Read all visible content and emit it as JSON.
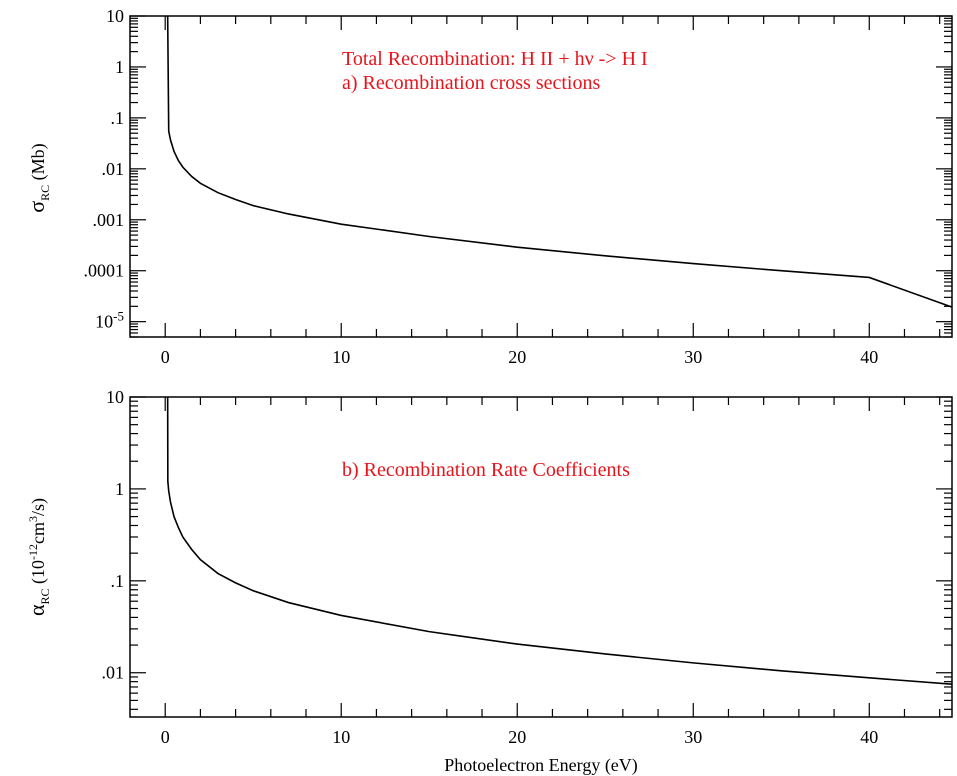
{
  "colors": {
    "annotation": "#e8141c",
    "curve": "#000000",
    "axes": "#000000",
    "background": "#ffffff"
  },
  "figure": {
    "xlabel": "Photoelectron Energy (eV)"
  },
  "chart_data": [
    {
      "type": "line",
      "panel": "a",
      "annotation_lines": [
        "Total Recombination: H II + hν -> H I",
        "a) Recombination cross sections"
      ],
      "ylabel": {
        "symbol": "σ",
        "subscript": "RC",
        "rest": " (Mb)"
      },
      "yscale": "log",
      "xlim": [
        -2,
        44.7
      ],
      "ylim": [
        5e-06,
        10
      ],
      "x_ticks": [
        0,
        10,
        20,
        30,
        40
      ],
      "x_tick_labels": [
        "0",
        "10",
        "20",
        "30",
        "40"
      ],
      "y_ticks": [
        10,
        1,
        0.1,
        0.01,
        0.001,
        0.0001
      ],
      "y_tick_labels": [
        "10",
        "1",
        ".1",
        ".01",
        ".001",
        ".0001"
      ],
      "y_tick_extra": {
        "value": 1e-05,
        "base": "10",
        "exponent": "-5"
      },
      "grid": false,
      "legend": "none",
      "series": [
        {
          "x": [
            0.14,
            0.2,
            0.3,
            0.5,
            0.75,
            1,
            1.5,
            2,
            3,
            4,
            5,
            7,
            10,
            15,
            20,
            25,
            30,
            35,
            40,
            44.7
          ],
          "y": [
            10,
            0.055,
            0.037,
            0.022,
            0.0145,
            0.0108,
            0.0071,
            0.0052,
            0.0034,
            0.0025,
            0.0019,
            0.0013,
            0.00082,
            0.00047,
            0.00029,
            0.000196,
            0.000138,
            0.0001,
            7.37e-05,
            1.93e-05
          ]
        }
      ]
    },
    {
      "type": "line",
      "panel": "b",
      "annotation_lines": [
        "b) Recombination Rate Coefficients"
      ],
      "ylabel": {
        "symbol": "α",
        "subscript": "RC",
        "rest_pre": " (10",
        "rest_sup1": "-12",
        "rest_mid": "cm",
        "rest_sup2": "3",
        "rest_post": "/s)"
      },
      "yscale": "log",
      "xlim": [
        -2,
        44.7
      ],
      "ylim": [
        0.0033,
        10
      ],
      "x_ticks": [
        0,
        10,
        20,
        30,
        40
      ],
      "x_tick_labels": [
        "0",
        "10",
        "20",
        "30",
        "40"
      ],
      "y_ticks": [
        10,
        1,
        0.1,
        0.01
      ],
      "y_tick_labels": [
        "10",
        "1",
        ".1",
        ".01"
      ],
      "grid": false,
      "legend": "none",
      "series": [
        {
          "x": [
            0.14,
            0.15,
            0.2,
            0.3,
            0.5,
            0.75,
            1,
            1.5,
            2,
            3,
            4,
            5,
            7,
            10,
            15,
            20,
            25,
            30,
            35,
            40,
            44.7
          ],
          "y": [
            10,
            1.2,
            0.95,
            0.72,
            0.5,
            0.38,
            0.3,
            0.22,
            0.17,
            0.12,
            0.095,
            0.078,
            0.058,
            0.042,
            0.028,
            0.0205,
            0.016,
            0.0128,
            0.0105,
            0.0088,
            0.0075
          ]
        }
      ]
    }
  ]
}
